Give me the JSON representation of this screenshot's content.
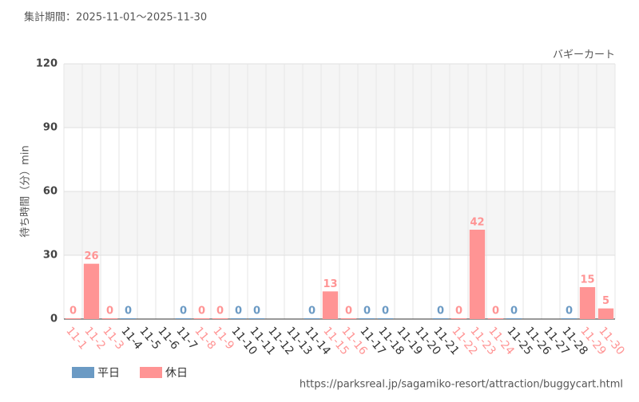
{
  "chart_data": {
    "type": "bar",
    "subtitle": "集計期間：2025-11-01～2025-11-30",
    "title": "バギーカート",
    "y_label": "待ち時間（分）min",
    "source": "https://parksreal.jp/sagamiko-resort/attraction/buggycart.html",
    "categories": [
      "11-1",
      "11-2",
      "11-3",
      "11-4",
      "11-5",
      "11-6",
      "11-7",
      "11-8",
      "11-9",
      "11-10",
      "11-11",
      "11-12",
      "11-13",
      "11-14",
      "11-15",
      "11-16",
      "11-17",
      "11-18",
      "11-19",
      "11-20",
      "11-21",
      "11-22",
      "11-23",
      "11-24",
      "11-25",
      "11-26",
      "11-27",
      "11-28",
      "11-29",
      "11-30"
    ],
    "series": [
      {
        "name": "平日",
        "color": "#6b9ac4",
        "values": [
          null,
          null,
          null,
          0,
          null,
          null,
          0,
          null,
          null,
          0,
          0,
          null,
          null,
          0,
          null,
          null,
          0,
          0,
          null,
          null,
          0,
          null,
          null,
          null,
          0,
          null,
          null,
          0,
          null,
          null
        ]
      },
      {
        "name": "休日",
        "color": "#ff9494",
        "values": [
          0,
          26,
          0,
          null,
          null,
          null,
          null,
          0,
          0,
          null,
          null,
          null,
          null,
          null,
          13,
          0,
          null,
          null,
          null,
          null,
          null,
          0,
          42,
          0,
          null,
          null,
          null,
          null,
          15,
          5
        ]
      }
    ],
    "ylim": [
      0,
      120
    ],
    "yticks": [
      0,
      30,
      60,
      90,
      120
    ],
    "grid": true
  }
}
